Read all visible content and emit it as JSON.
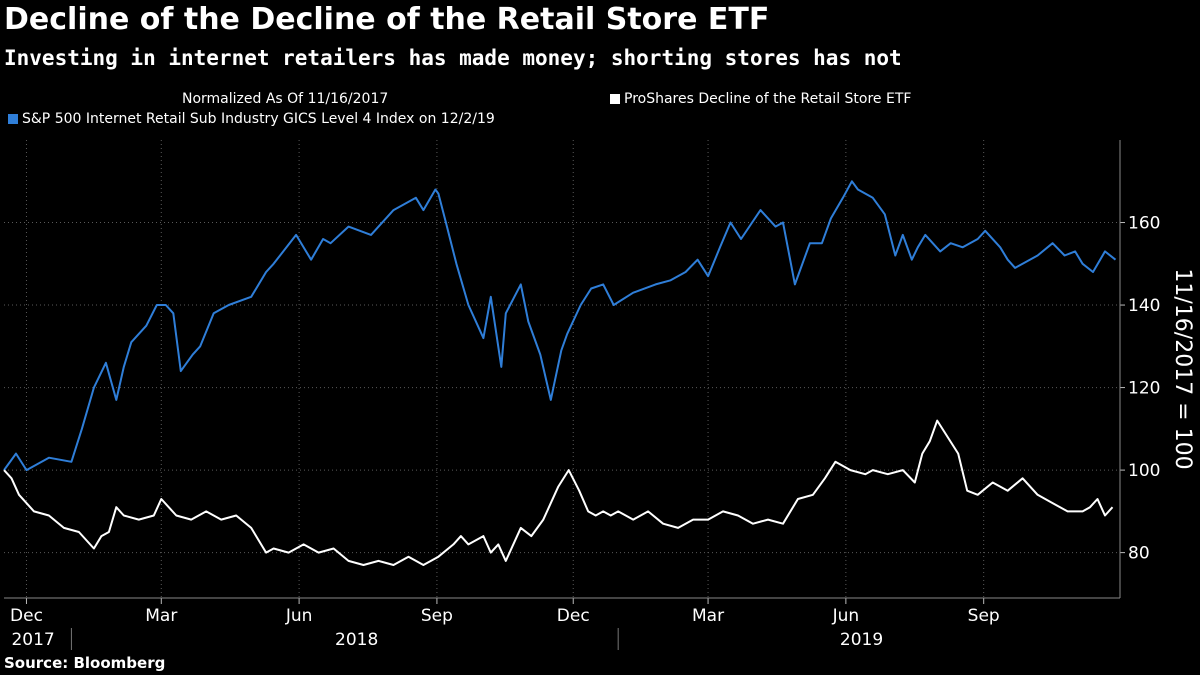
{
  "header": {
    "title": "Decline of the Decline of the Retail Store ETF",
    "subtitle": "Investing in internet retailers has made money; shorting stores has not"
  },
  "legend": {
    "normalized_note": "Normalized As Of 11/16/2017",
    "etf_label": "ProShares Decline of the Retail Store ETF",
    "index_label": "S&P 500 Internet Retail Sub Industry GICS Level 4 Index  on 12/2/19"
  },
  "footer": {
    "source": "Source: Bloomberg"
  },
  "chart_data": {
    "type": "line",
    "title": "Decline of the Decline of the Retail Store ETF",
    "ylabel": "11/16/2017 = 100",
    "ylim": [
      69,
      180
    ],
    "xlim": [
      0,
      745
    ],
    "yticks": [
      80,
      100,
      120,
      140,
      160
    ],
    "xticks": [
      {
        "label": "Dec",
        "day": 15
      },
      {
        "label": "Mar",
        "day": 105
      },
      {
        "label": "Jun",
        "day": 197
      },
      {
        "label": "Sep",
        "day": 289
      },
      {
        "label": "Dec",
        "day": 380
      },
      {
        "label": "Mar",
        "day": 470
      },
      {
        "label": "Jun",
        "day": 562
      },
      {
        "label": "Sep",
        "day": 654
      }
    ],
    "years": [
      {
        "label": "2017",
        "day": 5
      },
      {
        "label": "2018",
        "day": 221
      },
      {
        "label": "2019",
        "day": 558
      }
    ],
    "year_separators": [
      45,
      410
    ],
    "grid": true,
    "x_unit": "days since 11/16/2017",
    "series": [
      {
        "name": "S&P 500 Internet Retail Sub Industry GICS Level 4 Index",
        "color": "#2f7ed8",
        "x": [
          0,
          8,
          15,
          30,
          45,
          52,
          60,
          68,
          75,
          80,
          85,
          95,
          102,
          108,
          113,
          118,
          126,
          131,
          140,
          150,
          165,
          175,
          180,
          195,
          205,
          213,
          218,
          230,
          245,
          260,
          275,
          280,
          288,
          290,
          295,
          302,
          310,
          320,
          325,
          332,
          335,
          345,
          350,
          358,
          365,
          372,
          376,
          385,
          392,
          400,
          407,
          420,
          435,
          445,
          455,
          463,
          470,
          478,
          485,
          492,
          505,
          515,
          520,
          528,
          538,
          546,
          552,
          560,
          566,
          570,
          580,
          588,
          595,
          600,
          606,
          610,
          615,
          625,
          632,
          640,
          650,
          655,
          665,
          670,
          675,
          690,
          700,
          708,
          715,
          720,
          727,
          735,
          742
        ],
        "values": [
          100,
          104,
          100,
          103,
          102,
          110,
          120,
          126,
          117,
          125,
          131,
          135,
          140,
          140,
          138,
          124,
          128,
          130,
          138,
          140,
          142,
          148,
          150,
          157,
          151,
          156,
          155,
          159,
          157,
          163,
          166,
          163,
          168,
          167,
          160,
          150,
          140,
          132,
          142,
          125,
          138,
          145,
          136,
          128,
          117,
          129,
          133,
          140,
          144,
          145,
          140,
          143,
          145,
          146,
          148,
          151,
          147,
          154,
          160,
          156,
          163,
          159,
          160,
          145,
          155,
          155,
          161,
          166,
          170,
          168,
          166,
          162,
          152,
          157,
          151,
          154,
          157,
          153,
          155,
          154,
          156,
          158,
          154,
          151,
          149,
          152,
          155,
          152,
          153,
          150,
          148,
          153,
          151
        ]
      },
      {
        "name": "ProShares Decline of the Retail Store ETF",
        "color": "#ffffff",
        "x": [
          0,
          5,
          10,
          20,
          30,
          40,
          50,
          60,
          65,
          70,
          75,
          80,
          90,
          100,
          105,
          115,
          125,
          135,
          145,
          155,
          165,
          175,
          180,
          190,
          200,
          210,
          220,
          230,
          240,
          250,
          260,
          270,
          280,
          290,
          300,
          305,
          310,
          320,
          325,
          330,
          335,
          345,
          352,
          360,
          365,
          370,
          377,
          384,
          390,
          395,
          400,
          405,
          410,
          420,
          430,
          440,
          450,
          460,
          470,
          480,
          490,
          500,
          510,
          520,
          530,
          540,
          548,
          555,
          565,
          575,
          580,
          590,
          600,
          608,
          613,
          618,
          623,
          630,
          637,
          643,
          650,
          660,
          670,
          680,
          690,
          700,
          710,
          720,
          725,
          730,
          735,
          740
        ],
        "values": [
          100,
          98,
          94,
          90,
          89,
          86,
          85,
          81,
          84,
          85,
          91,
          89,
          88,
          89,
          93,
          89,
          88,
          90,
          88,
          89,
          86,
          80,
          81,
          80,
          82,
          80,
          81,
          78,
          77,
          78,
          77,
          79,
          77,
          79,
          82,
          84,
          82,
          84,
          80,
          82,
          78,
          86,
          84,
          88,
          92,
          96,
          100,
          95,
          90,
          89,
          90,
          89,
          90,
          88,
          90,
          87,
          86,
          88,
          88,
          90,
          89,
          87,
          88,
          87,
          93,
          94,
          98,
          102,
          100,
          99,
          100,
          99,
          100,
          97,
          104,
          107,
          112,
          108,
          104,
          95,
          94,
          97,
          95,
          98,
          94,
          92,
          90,
          90,
          91,
          93,
          89,
          91
        ]
      }
    ]
  }
}
